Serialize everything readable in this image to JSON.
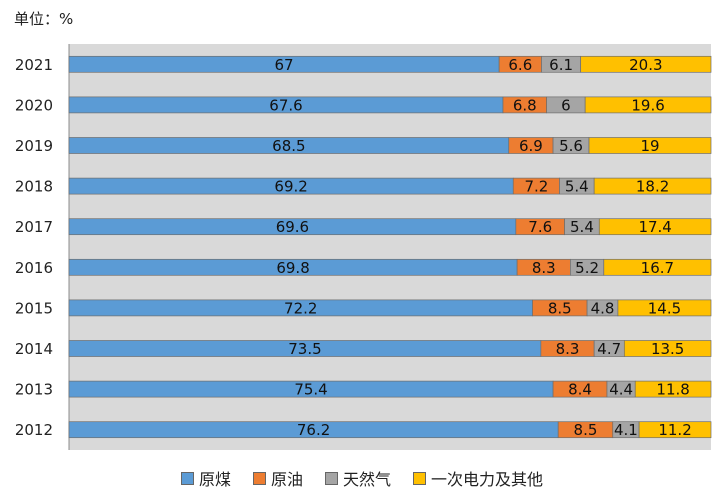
{
  "unit_label": "单位：%",
  "chart_data": {
    "type": "bar",
    "orientation": "horizontal",
    "stacked": true,
    "percent_stacked": true,
    "categories": [
      "2021",
      "2020",
      "2019",
      "2018",
      "2017",
      "2016",
      "2015",
      "2014",
      "2013",
      "2012"
    ],
    "series": [
      {
        "name": "原煤",
        "color": "#5b9bd5",
        "values": [
          67,
          67.6,
          68.5,
          69.2,
          69.6,
          69.8,
          72.2,
          73.5,
          75.4,
          76.2
        ]
      },
      {
        "name": "原油",
        "color": "#ed7d31",
        "values": [
          6.6,
          6.8,
          6.9,
          7.2,
          7.6,
          8.3,
          8.5,
          8.3,
          8.4,
          8.5
        ]
      },
      {
        "name": "天然气",
        "color": "#a5a5a5",
        "values": [
          6.1,
          6,
          5.6,
          5.4,
          5.4,
          5.2,
          4.8,
          4.7,
          4.4,
          4.1
        ]
      },
      {
        "name": "一次电力及其他",
        "color": "#ffc000",
        "values": [
          20.3,
          19.6,
          19,
          18.2,
          17.4,
          16.7,
          14.5,
          13.5,
          11.8,
          11.2
        ]
      }
    ],
    "legend": "bottom",
    "grid": false,
    "background": "#d9d9d9"
  }
}
